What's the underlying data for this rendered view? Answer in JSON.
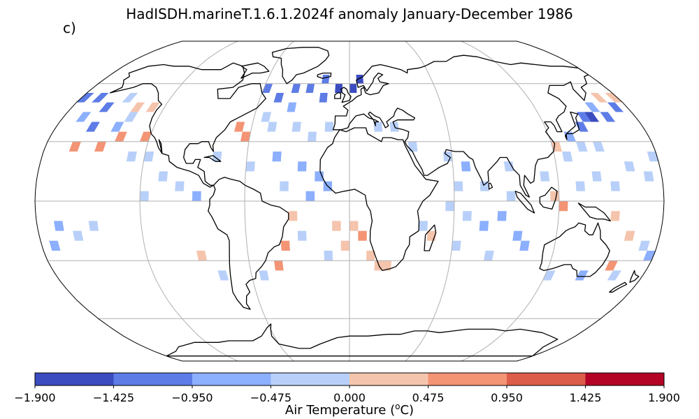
{
  "title": "HadISDH.marineT.1.6.1.2024f anomaly January-December 1986",
  "panel_label": "c)",
  "colorbar": {
    "ticks": [
      "−1.900",
      "−1.425",
      "−0.950",
      "−0.475",
      "0.000",
      "0.475",
      "0.950",
      "1.425",
      "1.900"
    ],
    "label_prefix": "Air Temperature (",
    "label_unit_sup": "o",
    "label_suffix": "C)",
    "colors": [
      "#3b4cc0",
      "#5d7ce6",
      "#8caffe",
      "#b8d0f9",
      "#f5c4ac",
      "#f39475",
      "#dc5d4a",
      "#b40426"
    ]
  },
  "map": {
    "projection": "Robinson",
    "ocean_cells": [
      {
        "lon": -180,
        "lat": 50,
        "v": -1.2
      },
      {
        "lon": -170,
        "lat": 50,
        "v": -1.0
      },
      {
        "lon": -160,
        "lat": 45,
        "v": -1.1
      },
      {
        "lon": -150,
        "lat": 50,
        "v": -0.4
      },
      {
        "lon": -140,
        "lat": 45,
        "v": 0.3
      },
      {
        "lon": -130,
        "lat": 45,
        "v": 0.4
      },
      {
        "lon": -160,
        "lat": 35,
        "v": -1.2
      },
      {
        "lon": -145,
        "lat": 35,
        "v": -0.8
      },
      {
        "lon": -170,
        "lat": 40,
        "v": -0.9
      },
      {
        "lon": -165,
        "lat": 25,
        "v": 0.7
      },
      {
        "lon": -150,
        "lat": 25,
        "v": 0.8
      },
      {
        "lon": -140,
        "lat": 30,
        "v": 0.6
      },
      {
        "lon": -125,
        "lat": 30,
        "v": 0.5
      },
      {
        "lon": -120,
        "lat": 20,
        "v": -0.2
      },
      {
        "lon": -110,
        "lat": 10,
        "v": -0.3
      },
      {
        "lon": -100,
        "lat": 5,
        "v": -0.2
      },
      {
        "lon": -120,
        "lat": 0,
        "v": -0.3
      },
      {
        "lon": -90,
        "lat": 0,
        "v": -0.5
      },
      {
        "lon": -170,
        "lat": -15,
        "v": -0.5
      },
      {
        "lon": -160,
        "lat": -20,
        "v": -0.3
      },
      {
        "lon": -175,
        "lat": -25,
        "v": -0.8
      },
      {
        "lon": -150,
        "lat": -15,
        "v": -0.2
      },
      {
        "lon": -90,
        "lat": -30,
        "v": 0.3
      },
      {
        "lon": -80,
        "lat": -40,
        "v": -0.3
      },
      {
        "lon": -60,
        "lat": 55,
        "v": -1.0
      },
      {
        "lon": -50,
        "lat": 50,
        "v": -1.2
      },
      {
        "lon": -40,
        "lat": 55,
        "v": -1.3
      },
      {
        "lon": -30,
        "lat": 55,
        "v": -1.4
      },
      {
        "lon": -20,
        "lat": 60,
        "v": -1.1
      },
      {
        "lon": -10,
        "lat": 55,
        "v": -1.5
      },
      {
        "lon": 0,
        "lat": 55,
        "v": -1.6
      },
      {
        "lon": 5,
        "lat": 60,
        "v": -1.5
      },
      {
        "lon": -20,
        "lat": 50,
        "v": -1.0
      },
      {
        "lon": -40,
        "lat": 45,
        "v": -0.7
      },
      {
        "lon": -55,
        "lat": 40,
        "v": -0.4
      },
      {
        "lon": -70,
        "lat": 35,
        "v": 0.8
      },
      {
        "lon": -65,
        "lat": 30,
        "v": 0.5
      },
      {
        "lon": -50,
        "lat": 35,
        "v": -0.2
      },
      {
        "lon": -35,
        "lat": 35,
        "v": -0.3
      },
      {
        "lon": -25,
        "lat": 30,
        "v": -0.3
      },
      {
        "lon": -15,
        "lat": 35,
        "v": -0.4
      },
      {
        "lon": -45,
        "lat": 20,
        "v": -0.6
      },
      {
        "lon": -30,
        "lat": 15,
        "v": -0.7
      },
      {
        "lon": -20,
        "lat": 10,
        "v": -0.6
      },
      {
        "lon": -40,
        "lat": 5,
        "v": -0.3
      },
      {
        "lon": -25,
        "lat": 0,
        "v": -0.6
      },
      {
        "lon": -15,
        "lat": 5,
        "v": -0.5
      },
      {
        "lon": -60,
        "lat": 15,
        "v": -0.4
      },
      {
        "lon": -80,
        "lat": 20,
        "v": -0.3
      },
      {
        "lon": -35,
        "lat": -10,
        "v": 0.3
      },
      {
        "lon": -30,
        "lat": -20,
        "v": -0.2
      },
      {
        "lon": -40,
        "lat": -25,
        "v": 0.6
      },
      {
        "lon": -45,
        "lat": -35,
        "v": 0.8
      },
      {
        "lon": -55,
        "lat": -40,
        "v": -0.3
      },
      {
        "lon": -10,
        "lat": -15,
        "v": 0.3
      },
      {
        "lon": 0,
        "lat": -15,
        "v": 0.4
      },
      {
        "lon": 5,
        "lat": -20,
        "v": 0.6
      },
      {
        "lon": -5,
        "lat": -25,
        "v": 0.3
      },
      {
        "lon": 10,
        "lat": -30,
        "v": 0.3
      },
      {
        "lon": 15,
        "lat": -35,
        "v": 0.4
      },
      {
        "lon": 20,
        "lat": -35,
        "v": 0.3
      },
      {
        "lon": -15,
        "lat": -30,
        "v": -0.2
      },
      {
        "lon": 15,
        "lat": 35,
        "v": -0.3
      },
      {
        "lon": 25,
        "lat": 35,
        "v": -0.2
      },
      {
        "lon": 35,
        "lat": 25,
        "v": -0.4
      },
      {
        "lon": 55,
        "lat": 20,
        "v": -0.3
      },
      {
        "lon": 65,
        "lat": 15,
        "v": -0.5
      },
      {
        "lon": 75,
        "lat": 5,
        "v": -0.4
      },
      {
        "lon": 60,
        "lat": 5,
        "v": -0.2
      },
      {
        "lon": 55,
        "lat": -5,
        "v": -0.3
      },
      {
        "lon": 65,
        "lat": -10,
        "v": -0.4
      },
      {
        "lon": 75,
        "lat": -15,
        "v": -0.6
      },
      {
        "lon": 85,
        "lat": -10,
        "v": -0.5
      },
      {
        "lon": 90,
        "lat": 0,
        "v": -0.3
      },
      {
        "lon": 95,
        "lat": -20,
        "v": -0.7
      },
      {
        "lon": 100,
        "lat": -25,
        "v": -0.5
      },
      {
        "lon": 80,
        "lat": -30,
        "v": -0.3
      },
      {
        "lon": 60,
        "lat": -25,
        "v": -0.3
      },
      {
        "lon": 45,
        "lat": -20,
        "v": 0.4
      },
      {
        "lon": 40,
        "lat": -15,
        "v": -0.2
      },
      {
        "lon": 90,
        "lat": 15,
        "v": -0.3
      },
      {
        "lon": 110,
        "lat": 10,
        "v": -0.4
      },
      {
        "lon": 115,
        "lat": 0,
        "v": 0.3
      },
      {
        "lon": 120,
        "lat": -5,
        "v": 0.5
      },
      {
        "lon": 130,
        "lat": 5,
        "v": -0.3
      },
      {
        "lon": 140,
        "lat": 10,
        "v": -0.4
      },
      {
        "lon": 150,
        "lat": 5,
        "v": -0.3
      },
      {
        "lon": 160,
        "lat": 15,
        "v": -0.3
      },
      {
        "lon": 170,
        "lat": 10,
        "v": -0.3
      },
      {
        "lon": 175,
        "lat": 20,
        "v": -0.4
      },
      {
        "lon": 150,
        "lat": -10,
        "v": 0.3
      },
      {
        "lon": 160,
        "lat": -20,
        "v": 0.4
      },
      {
        "lon": 170,
        "lat": -25,
        "v": -0.4
      },
      {
        "lon": 175,
        "lat": -30,
        "v": -0.7
      },
      {
        "lon": 155,
        "lat": -35,
        "v": 0.5
      },
      {
        "lon": 160,
        "lat": -40,
        "v": -0.4
      },
      {
        "lon": 140,
        "lat": -40,
        "v": -0.5
      },
      {
        "lon": 120,
        "lat": -40,
        "v": -0.3
      },
      {
        "lon": 130,
        "lat": 30,
        "v": -0.7
      },
      {
        "lon": 140,
        "lat": 35,
        "v": -1.0
      },
      {
        "lon": 145,
        "lat": 40,
        "v": -1.2
      },
      {
        "lon": 150,
        "lat": 40,
        "v": -1.5
      },
      {
        "lon": 160,
        "lat": 40,
        "v": -1.0
      },
      {
        "lon": 170,
        "lat": 45,
        "v": -1.1
      },
      {
        "lon": 155,
        "lat": 45,
        "v": -0.9
      },
      {
        "lon": 165,
        "lat": 50,
        "v": 0.3
      },
      {
        "lon": 175,
        "lat": 50,
        "v": 0.4
      },
      {
        "lon": 125,
        "lat": 20,
        "v": -0.3
      },
      {
        "lon": 135,
        "lat": 25,
        "v": -0.3
      },
      {
        "lon": 145,
        "lat": 25,
        "v": -0.4
      },
      {
        "lon": 120,
        "lat": 25,
        "v": 0.4
      },
      {
        "lon": -140,
        "lat": 40,
        "v": -0.3
      },
      {
        "lon": -130,
        "lat": 20,
        "v": -0.2
      }
    ]
  }
}
